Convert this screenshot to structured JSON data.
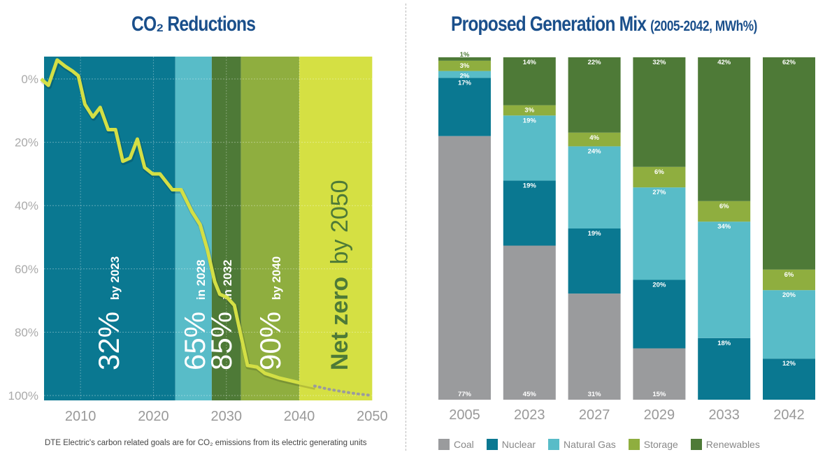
{
  "left_title": {
    "main": "CO₂ Reductions"
  },
  "right_title": {
    "main": "Proposed Generation Mix",
    "sub": "(2005-2042, MWh%)"
  },
  "footnote": "DTE Electric's carbon related goals are for CO₂ emissions from its electric generating units",
  "colors": {
    "coal": "#9a9b9d",
    "nuclear": "#0a7891",
    "natural_gas": "#58bcc8",
    "storage": "#8fae3f",
    "renewables": "#4e7a37",
    "line": "#d3df45",
    "net_zero_band": "#d5e043",
    "title": "#1a4f8b"
  },
  "chart_data": [
    {
      "type": "line",
      "title": "CO₂ Reductions",
      "xlim": [
        2004.5,
        2050
      ],
      "ylim": [
        -8,
        100
      ],
      "y_inverted": true,
      "x_ticks": [
        "2010",
        "2020",
        "2030",
        "2040",
        "2050"
      ],
      "y_ticks": [
        "0%",
        "20%",
        "40%",
        "60%",
        "80%",
        "100%"
      ],
      "grid": true,
      "series": [
        {
          "style": "solid",
          "x": [
            2004.6,
            2005.6,
            2006.8,
            2007.9,
            2008.9,
            2009.7,
            2010.6,
            2011.7,
            2012.7,
            2013.8,
            2014.8,
            2015.8,
            2016.8,
            2017.8,
            2018.8,
            2019.9,
            2020.9,
            2022.6,
            2023.8,
            2025.3,
            2026.4,
            2027.4,
            2028.4,
            2029.1,
            2030.1,
            2031.1,
            2031.8,
            2032.9,
            2034.2,
            2035.3,
            2037.3,
            2040.1,
            2042.1
          ],
          "y": [
            0,
            2,
            -6,
            -4,
            -2.5,
            -1,
            8,
            12,
            9,
            16,
            16,
            26,
            25,
            19,
            28,
            30,
            30,
            35,
            35,
            42,
            46,
            54,
            64,
            68,
            69,
            71.5,
            79,
            90.5,
            91,
            93,
            94.5,
            96,
            97
          ]
        },
        {
          "style": "dotted",
          "x": [
            2042.1,
            2044,
            2046,
            2048,
            2050
          ],
          "y": [
            97,
            98,
            98.8,
            99.5,
            100
          ]
        }
      ],
      "bands": [
        {
          "from": 2005,
          "to": 2023,
          "color": "#0a7891",
          "value": "32%",
          "label": "by 2023"
        },
        {
          "from": 2023,
          "to": 2028,
          "color": "#58bcc8",
          "value": "65%",
          "label": "in 2028"
        },
        {
          "from": 2028,
          "to": 2032,
          "color": "#4e7a37",
          "value": "85%",
          "label": "in 2032"
        },
        {
          "from": 2032,
          "to": 2040,
          "color": "#8fae3f",
          "value": "90%",
          "label": "by 2040"
        },
        {
          "from": 2040,
          "to": 2050,
          "color": "#d5e043",
          "value": "Net zero",
          "label": "by 2050"
        }
      ]
    },
    {
      "type": "bar",
      "stacked": true,
      "title": "Proposed Generation Mix (2005-2042, MWh%)",
      "categories": [
        "2005",
        "2023",
        "2027",
        "2029",
        "2033",
        "2042"
      ],
      "legend": "bottom",
      "series": [
        {
          "name": "Coal",
          "values": [
            77,
            45,
            31,
            15,
            0,
            0
          ]
        },
        {
          "name": "Nuclear",
          "values": [
            17,
            19,
            19,
            20,
            18,
            12
          ]
        },
        {
          "name": "Natural Gas",
          "values": [
            2,
            19,
            24,
            27,
            34,
            20
          ]
        },
        {
          "name": "Storage",
          "values": [
            3,
            3,
            4,
            6,
            6,
            6
          ]
        },
        {
          "name": "Renewables",
          "values": [
            1,
            14,
            22,
            32,
            42,
            62
          ]
        }
      ]
    }
  ]
}
